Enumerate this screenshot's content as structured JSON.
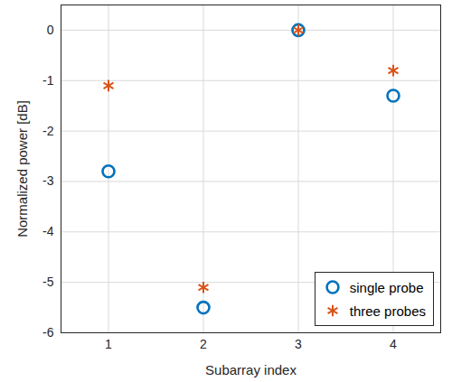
{
  "chart_data": {
    "type": "scatter",
    "x_label": "Subarray index",
    "y_label": "Normalized power [dB]",
    "x": [
      1,
      2,
      3,
      4
    ],
    "series": [
      {
        "name": "single probe",
        "color": "#0072bd",
        "marker": "circle",
        "values": [
          -2.8,
          -5.5,
          0,
          -1.3
        ]
      },
      {
        "name": "three probes",
        "color": "#d95319",
        "marker": "asterisk",
        "values": [
          -1.1,
          -5.1,
          0,
          -0.8
        ]
      }
    ],
    "xlim": [
      0.5,
      4.5
    ],
    "xticks": [
      1,
      2,
      3,
      4
    ],
    "ylim": [
      -6,
      0.5
    ],
    "yticks": [
      -6,
      -5,
      -4,
      -3,
      -2,
      -1,
      0
    ],
    "grid": true,
    "legend": "lower right"
  }
}
